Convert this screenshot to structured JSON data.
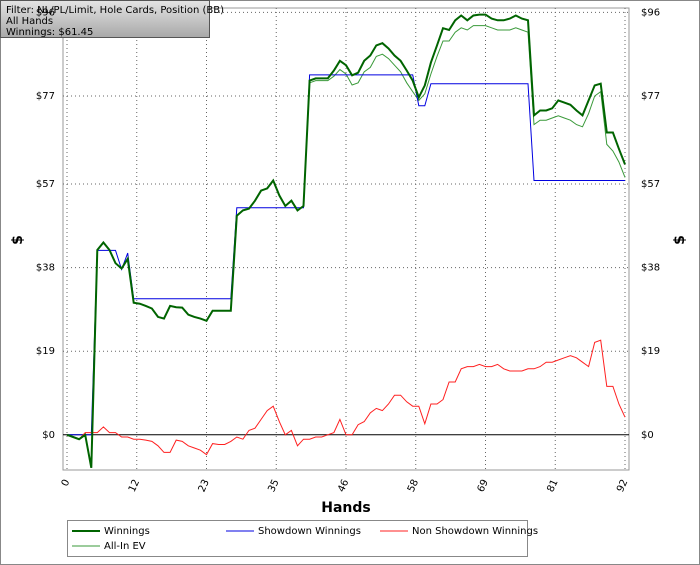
{
  "chart_data": {
    "type": "line",
    "info": [
      "Filter: NL/PL/Limit, Hole Cards, Position (BB)",
      "All Hands",
      "Winnings: $61.45"
    ],
    "x_label": "Hands",
    "y_label": "$",
    "x": [
      0,
      1,
      2,
      3,
      4,
      5,
      6,
      7,
      8,
      9,
      10,
      11,
      12,
      13,
      14,
      15,
      16,
      17,
      18,
      19,
      20,
      21,
      22,
      23,
      24,
      25,
      26,
      27,
      28,
      29,
      30,
      31,
      32,
      33,
      34,
      35,
      36,
      37,
      38,
      39,
      40,
      41,
      42,
      43,
      44,
      45,
      46,
      47,
      48,
      49,
      50,
      51,
      52,
      53,
      54,
      55,
      56,
      57,
      58,
      59,
      60,
      61,
      62,
      63,
      64,
      65,
      66,
      67,
      68,
      69,
      70,
      71,
      72,
      73,
      74,
      75,
      76,
      77,
      78,
      79,
      80,
      81,
      82,
      83,
      84,
      85,
      86,
      87,
      88,
      89,
      90,
      91,
      92
    ],
    "xlim": [
      0,
      92
    ],
    "xticks": [
      0,
      {
        "value": 11.5,
        "label": "12"
      },
      23,
      {
        "value": 34.5,
        "label": "35"
      },
      46,
      {
        "value": 57.5,
        "label": "58"
      },
      69,
      {
        "value": 80.5,
        "label": "81"
      },
      92
    ],
    "ylim": [
      -8,
      97
    ],
    "yticks": [
      {
        "value": 0,
        "label": "$0"
      },
      {
        "value": 19,
        "label": "$19"
      },
      {
        "value": 38,
        "label": "$38"
      },
      {
        "value": 57,
        "label": "$57"
      },
      {
        "value": 77,
        "label": "$77"
      },
      {
        "value": 96,
        "label": "$96"
      }
    ],
    "grid": true,
    "series": [
      {
        "name": "Winnings",
        "color": "#006400",
        "values": [
          0,
          -0.5,
          -1,
          0,
          -7.5,
          42,
          43.7,
          42,
          39,
          37.8,
          40,
          30,
          29.8,
          29.3,
          28.7,
          26.8,
          26.4,
          29.3,
          29,
          28.9,
          27.3,
          26.8,
          26.4,
          25.9,
          28.2,
          28.2,
          28.2,
          28.2,
          49.8,
          51,
          51.4,
          53.2,
          55.5,
          56,
          57.8,
          54.4,
          52,
          53.2,
          51,
          52,
          80.5,
          81,
          81,
          81,
          82.8,
          85,
          84,
          81.7,
          82.3,
          85,
          86.2,
          88.5,
          89,
          87.8,
          86.2,
          85,
          82.8,
          80.5,
          76.7,
          79.4,
          84.6,
          88.5,
          92.4,
          92,
          94.2,
          95.3,
          94.2,
          95.3,
          95.5,
          95.5,
          94.6,
          94.2,
          94.2,
          94.6,
          95.3,
          94.6,
          94.2,
          72.6,
          73.7,
          73.7,
          74.2,
          76,
          75.5,
          75,
          73.7,
          72.6,
          76,
          79.4,
          79.8,
          68.7,
          68.7,
          65,
          61.45
        ]
      },
      {
        "name": "Showdown Winnings",
        "color": "#0000e0",
        "values": [
          0,
          0,
          0,
          0,
          0,
          41.9,
          41.9,
          41.9,
          41.9,
          37.6,
          41.3,
          30.9,
          30.9,
          30.9,
          30.9,
          30.9,
          30.9,
          30.9,
          30.9,
          30.9,
          30.9,
          30.9,
          30.9,
          30.9,
          30.9,
          30.9,
          30.9,
          30.9,
          51.6,
          51.6,
          51.6,
          51.6,
          51.6,
          51.6,
          51.6,
          51.6,
          51.6,
          51.6,
          51.6,
          51.6,
          81.8,
          81.8,
          81.8,
          81.8,
          81.8,
          81.8,
          81.8,
          81.8,
          81.8,
          81.8,
          81.8,
          81.8,
          81.8,
          81.8,
          81.8,
          81.8,
          81.8,
          81.8,
          74.8,
          74.8,
          79.8,
          79.8,
          79.8,
          79.8,
          79.8,
          79.8,
          79.8,
          79.8,
          79.8,
          79.8,
          79.8,
          79.8,
          79.8,
          79.8,
          79.8,
          79.8,
          79.8,
          57.8,
          57.8,
          57.8,
          57.8,
          57.8,
          57.8,
          57.8,
          57.8,
          57.8,
          57.8,
          57.8,
          57.8,
          57.8,
          57.8,
          57.8,
          57.8
        ]
      },
      {
        "name": "Non Showdown Winnings",
        "color": "#ff2020",
        "values": [
          0,
          -0.5,
          -1,
          0.5,
          0.5,
          0.5,
          1.8,
          0.5,
          0.5,
          -0.5,
          -0.5,
          -1,
          -1,
          -1.2,
          -1.5,
          -2.5,
          -4,
          -4,
          -1.2,
          -1.5,
          -2.5,
          -3,
          -3.5,
          -4.5,
          -2,
          -2.2,
          -2.2,
          -1.5,
          -0.5,
          -1,
          1,
          1.5,
          3.5,
          5.5,
          6.5,
          3,
          0,
          1,
          -2.5,
          -1,
          -1,
          -0.5,
          -0.5,
          0,
          0.5,
          3.5,
          0,
          0,
          2.3,
          3,
          5,
          6,
          5.5,
          7,
          9,
          9,
          7.5,
          6.5,
          6.5,
          2.5,
          7,
          7,
          8,
          12,
          12,
          15,
          15.5,
          15.5,
          16,
          15.5,
          15.5,
          16,
          15,
          14.5,
          14.5,
          14.5,
          15,
          15,
          15.5,
          16.5,
          16.5,
          17,
          17.5,
          18,
          17.5,
          16.5,
          15.5,
          21,
          21.5,
          11,
          11,
          7,
          4
        ]
      },
      {
        "name": "All-In EV",
        "color": "#3a9a3a",
        "values": [
          0,
          -0.5,
          -1,
          0,
          -7.5,
          42,
          43.7,
          42,
          39,
          37.8,
          40,
          30,
          29.8,
          29.3,
          28.7,
          26.8,
          26.4,
          29.3,
          29,
          28.9,
          27.3,
          26.8,
          26.4,
          25.9,
          28.2,
          28.2,
          28.2,
          28.2,
          49.8,
          51,
          51.4,
          53.2,
          55.5,
          56,
          57.8,
          54.4,
          52,
          53.2,
          51,
          52,
          80,
          80.5,
          80.5,
          80.5,
          81.5,
          83,
          82,
          79.5,
          80,
          82.5,
          83.5,
          86,
          86.5,
          85.5,
          84,
          82.5,
          80,
          78,
          76,
          77.5,
          82,
          86,
          89.5,
          89.5,
          91.5,
          92.5,
          92,
          93,
          93,
          93,
          92.5,
          92,
          92,
          92,
          92.5,
          92,
          91.5,
          70.5,
          71.5,
          71.5,
          72,
          72.5,
          72,
          71.5,
          70.5,
          70,
          73,
          77,
          78,
          66,
          64.5,
          62,
          58.5
        ]
      }
    ]
  }
}
